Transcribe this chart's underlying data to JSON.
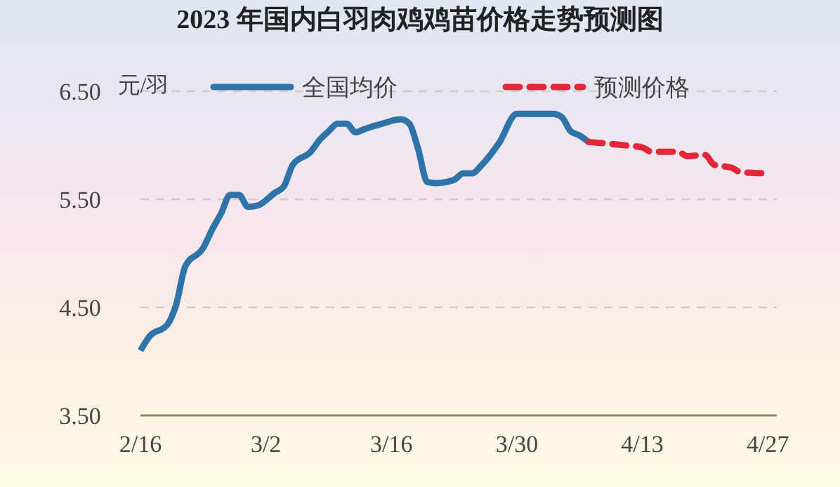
{
  "chart_data": {
    "type": "line",
    "title": "2023 年国内白羽肉鸡鸡苗价格走势预测图",
    "ylabel": "元/羽",
    "xlim": [
      "2023-02-16",
      "2023-04-28"
    ],
    "xticks": [
      {
        "value": "2023-02-16",
        "label": "2/16"
      },
      {
        "value": "2023-03-02",
        "label": "3/2"
      },
      {
        "value": "2023-03-16",
        "label": "3/16"
      },
      {
        "value": "2023-03-30",
        "label": "3/30"
      },
      {
        "value": "2023-04-13",
        "label": "4/13"
      },
      {
        "value": "2023-04-27",
        "label": "4/27"
      }
    ],
    "ylim": [
      3.5,
      6.5
    ],
    "yticks": [
      {
        "value": 3.5,
        "label": "3.50"
      },
      {
        "value": 4.5,
        "label": "4.50"
      },
      {
        "value": 5.5,
        "label": "5.50"
      },
      {
        "value": 6.5,
        "label": "6.50"
      }
    ],
    "grid": "y",
    "legend": "top",
    "marker": "none",
    "series": [
      {
        "name": "全国均价",
        "color": "#2e74a8",
        "line_style": "solid",
        "x": [
          "2023-02-16",
          "2023-02-17",
          "2023-02-19",
          "2023-02-20",
          "2023-02-21",
          "2023-02-23",
          "2023-02-24",
          "2023-02-25",
          "2023-02-26",
          "2023-02-27",
          "2023-02-28",
          "2023-03-01",
          "2023-03-03",
          "2023-03-04",
          "2023-03-05",
          "2023-03-07",
          "2023-03-08",
          "2023-03-09",
          "2023-03-10",
          "2023-03-11",
          "2023-03-12",
          "2023-03-13",
          "2023-03-15",
          "2023-03-17",
          "2023-03-18",
          "2023-03-19",
          "2023-03-20",
          "2023-03-21",
          "2023-03-23",
          "2023-03-24",
          "2023-03-25",
          "2023-03-26",
          "2023-03-28",
          "2023-03-30",
          "2023-04-03",
          "2023-04-04",
          "2023-04-05",
          "2023-04-06",
          "2023-04-07"
        ],
        "values": [
          4.1,
          4.23,
          4.34,
          4.53,
          4.88,
          5.05,
          5.22,
          5.37,
          5.54,
          5.54,
          5.43,
          5.44,
          5.56,
          5.62,
          5.82,
          5.94,
          6.05,
          6.13,
          6.2,
          6.2,
          6.12,
          6.15,
          6.2,
          6.24,
          6.2,
          5.96,
          5.66,
          5.65,
          5.68,
          5.74,
          5.74,
          5.81,
          6.02,
          6.29,
          6.29,
          6.26,
          6.13,
          6.09,
          6.03
        ]
      },
      {
        "name": "预测价格",
        "color": "#e0283a",
        "line_style": "dashed",
        "x": [
          "2023-04-07",
          "2023-04-11",
          "2023-04-13",
          "2023-04-14",
          "2023-04-17",
          "2023-04-18",
          "2023-04-20",
          "2023-04-21",
          "2023-04-23",
          "2023-04-24",
          "2023-04-27"
        ],
        "values": [
          6.03,
          6.0,
          5.98,
          5.94,
          5.94,
          5.9,
          5.91,
          5.82,
          5.79,
          5.75,
          5.74
        ]
      }
    ]
  }
}
